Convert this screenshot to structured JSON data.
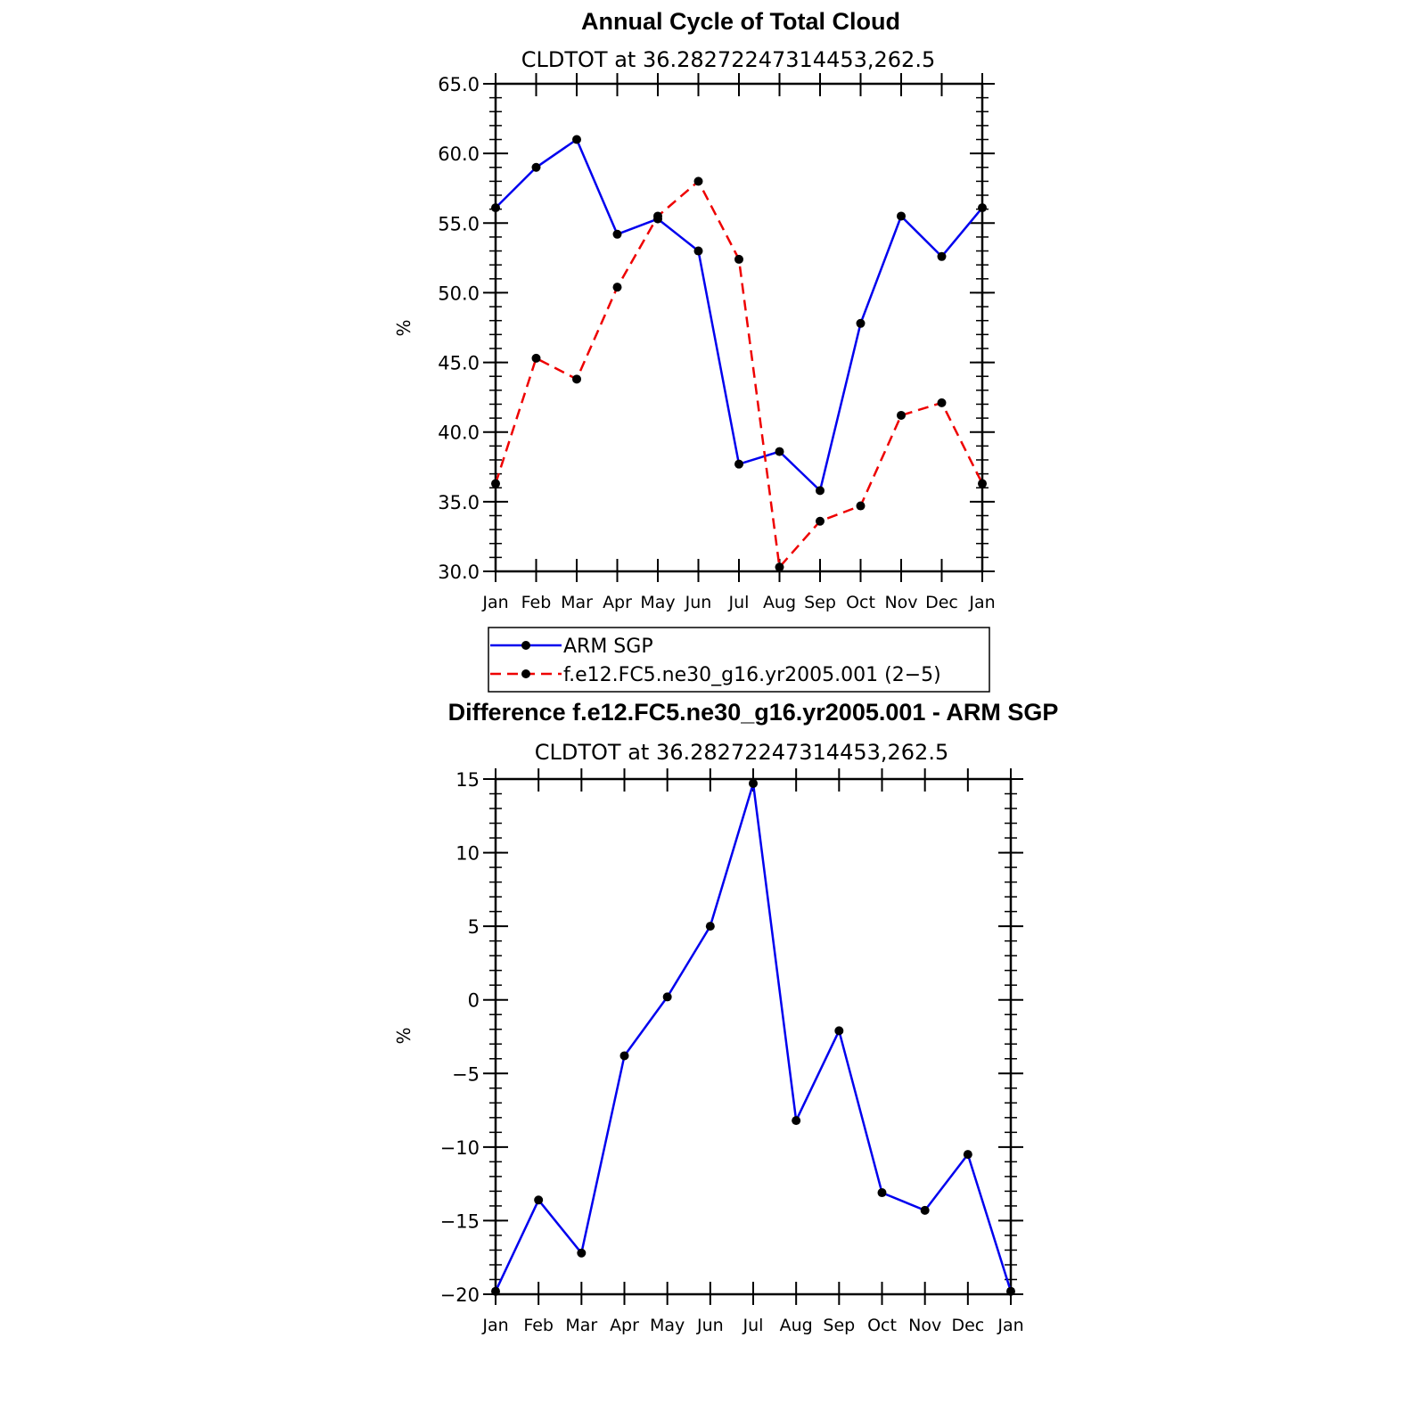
{
  "chart_data": [
    {
      "type": "line",
      "title": "Annual Cycle of Total Cloud",
      "subtitle": "CLDTOT at 36.28272247314453,262.5",
      "xlabel": "",
      "ylabel": "%",
      "categories": [
        "Jan",
        "Feb",
        "Mar",
        "Apr",
        "May",
        "Jun",
        "Jul",
        "Aug",
        "Sep",
        "Oct",
        "Nov",
        "Dec",
        "Jan"
      ],
      "ylim": [
        30,
        65
      ],
      "yticks": [
        30,
        35,
        40,
        45,
        50,
        55,
        60,
        65
      ],
      "ytick_labels": [
        "30.0",
        "35.0",
        "40.0",
        "45.0",
        "50.0",
        "55.0",
        "60.0",
        "65.0"
      ],
      "series": [
        {
          "name": "ARM SGP",
          "color": "#0000ee",
          "dash": "solid",
          "values": [
            56.1,
            59.0,
            61.0,
            54.2,
            55.3,
            53.0,
            37.7,
            38.6,
            35.8,
            47.8,
            55.5,
            52.6,
            56.1
          ]
        },
        {
          "name": "f.e12.FC5.ne30_g16.yr2005.001 (2−5)",
          "color": "#ee0000",
          "dash": "dashed",
          "values": [
            36.3,
            45.3,
            43.8,
            50.4,
            55.5,
            58.0,
            52.4,
            30.3,
            33.6,
            34.7,
            41.2,
            42.1,
            36.3
          ]
        }
      ],
      "legend": "below"
    },
    {
      "type": "line",
      "title": "Difference f.e12.FC5.ne30_g16.yr2005.001 - ARM SGP",
      "subtitle": "CLDTOT at 36.28272247314453,262.5",
      "xlabel": "",
      "ylabel": "%",
      "categories": [
        "Jan",
        "Feb",
        "Mar",
        "Apr",
        "May",
        "Jun",
        "Jul",
        "Aug",
        "Sep",
        "Oct",
        "Nov",
        "Dec",
        "Jan"
      ],
      "ylim": [
        -20,
        15
      ],
      "yticks": [
        -20,
        -15,
        -10,
        -5,
        0,
        5,
        10,
        15
      ],
      "ytick_labels": [
        "−20",
        "−15",
        "−10",
        "−5",
        "0",
        "5",
        "10",
        "15"
      ],
      "series": [
        {
          "name": "Difference",
          "color": "#0000ee",
          "dash": "solid",
          "values": [
            -19.8,
            -13.6,
            -17.2,
            -3.8,
            0.2,
            5.0,
            14.7,
            -8.2,
            -2.1,
            -13.1,
            -14.3,
            -10.5,
            -19.8
          ]
        }
      ]
    }
  ]
}
